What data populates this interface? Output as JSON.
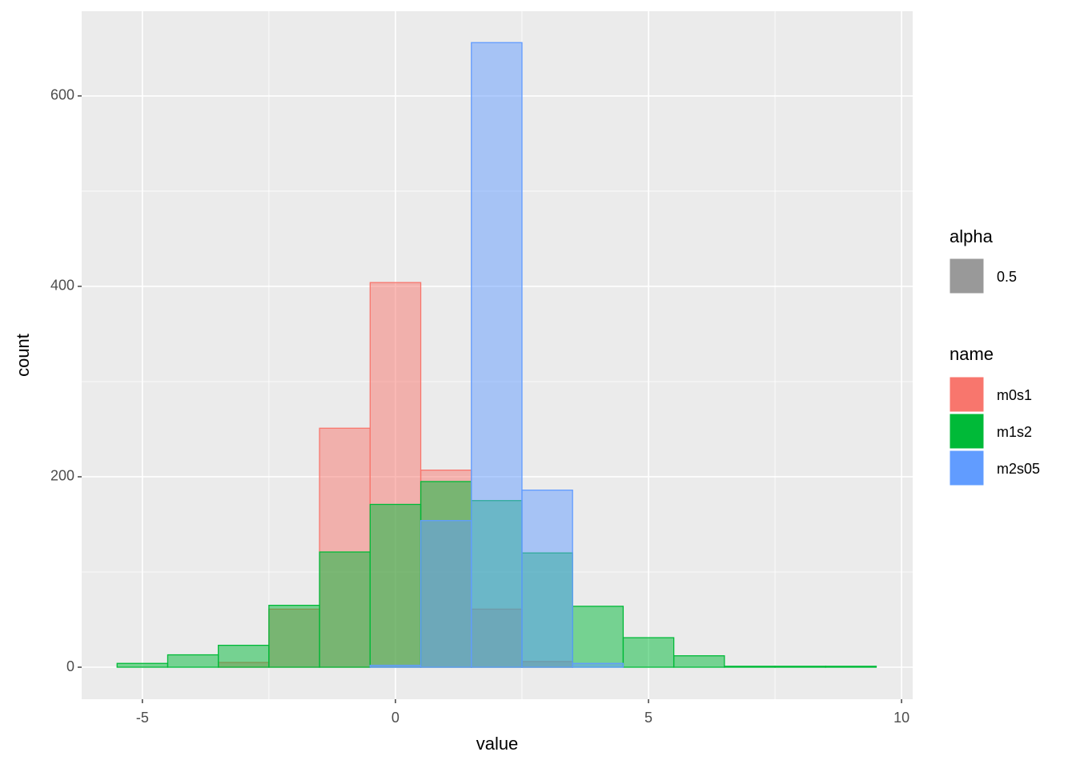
{
  "chart_data": {
    "type": "histogram",
    "x_label": "value",
    "y_label": "count",
    "bins": [
      -5.5,
      -4.5,
      -3.5,
      -2.5,
      -1.5,
      -0.5,
      0.5,
      1.5,
      2.5,
      3.5,
      4.5,
      5.5,
      6.5,
      7.5,
      8.5,
      9.5
    ],
    "series": [
      {
        "name": "m0s1",
        "color": "#F8766D",
        "values": [
          0,
          0,
          5,
          61,
          251,
          404,
          207,
          61,
          6,
          0,
          0,
          0,
          0,
          0,
          0
        ]
      },
      {
        "name": "m1s2",
        "color": "#00BA38",
        "values": [
          4,
          13,
          23,
          65,
          121,
          171,
          195,
          175,
          120,
          64,
          31,
          12,
          1,
          1,
          1
        ]
      },
      {
        "name": "m2s05",
        "color": "#619CFF",
        "values": [
          0,
          0,
          0,
          0,
          0,
          2,
          154,
          656,
          186,
          4,
          0,
          0,
          0,
          0,
          0
        ]
      }
    ],
    "fill_opacity": 0.5,
    "xlim": [
      -6.2,
      10.22
    ],
    "ylim": [
      -33.6,
      689
    ],
    "xticks": [
      -5,
      0,
      5,
      10
    ],
    "yticks": [
      0,
      200,
      400,
      600
    ],
    "x_minor_grid": [
      -2.5,
      2.5,
      7.5
    ],
    "y_minor_grid": [
      100,
      300,
      500
    ],
    "grid": true,
    "legend_title": "name",
    "alpha_legend": {
      "title": "alpha",
      "labels": [
        "0.5"
      ],
      "color": "#999999"
    }
  }
}
